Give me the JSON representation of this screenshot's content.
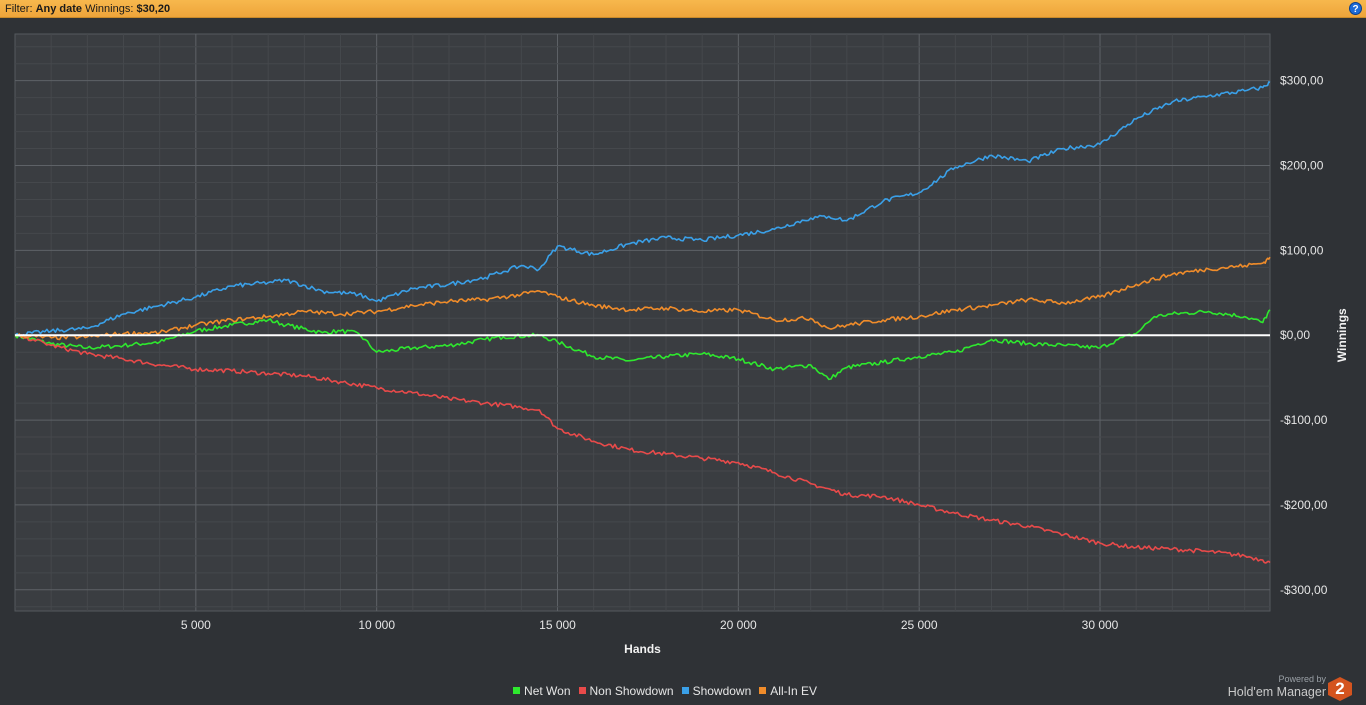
{
  "filter_bar": {
    "filter_label": "Filter:",
    "filter_value": "Any date",
    "winnings_label": "Winnings:",
    "winnings_value": "$30,20",
    "help_glyph": "?"
  },
  "branding": {
    "powered_by": "Powered by",
    "product": "Hold'em Manager",
    "logo_text": "2",
    "logo_color": "#d4541f"
  },
  "colors": {
    "background": "#2f3236",
    "plot_background": "#3a3d41",
    "zero_line": "#ffffff"
  },
  "chart_data": {
    "type": "line",
    "xlabel": "Hands",
    "ylabel": "Winnings",
    "xlim": [
      0,
      34700
    ],
    "ylim": [
      -325,
      355
    ],
    "x_ticks": [
      5000,
      10000,
      15000,
      20000,
      25000,
      30000
    ],
    "x_tick_labels": [
      "5 000",
      "10 000",
      "15 000",
      "20 000",
      "25 000",
      "30 000"
    ],
    "y_ticks": [
      300,
      200,
      100,
      0,
      -100,
      -200,
      -300
    ],
    "y_tick_labels": [
      "$300,00",
      "$200,00",
      "$100,00",
      "$0,00",
      "-$100,00",
      "-$200,00",
      "-$300,00"
    ],
    "legend_position": "bottom-center",
    "grid": true,
    "series": [
      {
        "name": "Net Won",
        "color": "#2ee82e",
        "x": [
          0,
          1000,
          2000,
          3000,
          4000,
          5000,
          6000,
          7000,
          7500,
          8500,
          9000,
          9500,
          10000,
          11000,
          12000,
          13000,
          13500,
          14500,
          15000,
          16000,
          17000,
          18000,
          19000,
          20000,
          21000,
          22000,
          22500,
          23000,
          24000,
          25000,
          26000,
          26500,
          27000,
          28000,
          29000,
          30000,
          30500,
          31000,
          31500,
          32000,
          33000,
          34000,
          34500,
          34700
        ],
        "y": [
          0,
          -10,
          -15,
          -12,
          -8,
          5,
          12,
          18,
          12,
          3,
          5,
          2,
          -20,
          -15,
          -12,
          -5,
          -2,
          0,
          -8,
          -25,
          -30,
          -25,
          -22,
          -28,
          -40,
          -35,
          -52,
          -38,
          -32,
          -25,
          -20,
          -12,
          -5,
          -10,
          -12,
          -15,
          -5,
          2,
          22,
          25,
          28,
          22,
          15,
          30
        ]
      },
      {
        "name": "Non Showdown",
        "color": "#e84a4a",
        "x": [
          0,
          500,
          1000,
          2000,
          3000,
          4000,
          5000,
          6000,
          7000,
          8000,
          9000,
          10000,
          11000,
          12000,
          13000,
          14000,
          14500,
          15000,
          16000,
          17000,
          18000,
          19000,
          20000,
          21000,
          22000,
          23000,
          24000,
          25000,
          26000,
          27000,
          28000,
          29000,
          30000,
          31000,
          32000,
          33000,
          34000,
          34500,
          34700
        ],
        "y": [
          0,
          -5,
          -12,
          -22,
          -28,
          -35,
          -40,
          -42,
          -45,
          -48,
          -55,
          -62,
          -68,
          -75,
          -80,
          -85,
          -88,
          -110,
          -125,
          -135,
          -140,
          -145,
          -150,
          -162,
          -175,
          -188,
          -190,
          -200,
          -210,
          -218,
          -225,
          -235,
          -245,
          -250,
          -252,
          -255,
          -260,
          -265,
          -268
        ]
      },
      {
        "name": "Showdown",
        "color": "#3aa0e8",
        "x": [
          0,
          1000,
          2000,
          3000,
          4000,
          5000,
          6000,
          7000,
          7500,
          8500,
          9500,
          10000,
          11000,
          12000,
          13000,
          13500,
          14000,
          14500,
          15000,
          16000,
          17000,
          18000,
          19000,
          20000,
          21000,
          22000,
          22500,
          23000,
          24000,
          25000,
          26000,
          27000,
          28000,
          29000,
          30000,
          31000,
          32000,
          33000,
          34000,
          34500,
          34700
        ],
        "y": [
          0,
          5,
          8,
          25,
          35,
          45,
          58,
          62,
          65,
          52,
          48,
          40,
          55,
          60,
          68,
          75,
          82,
          78,
          105,
          95,
          108,
          115,
          112,
          118,
          125,
          138,
          140,
          135,
          158,
          168,
          198,
          212,
          205,
          220,
          225,
          255,
          275,
          282,
          288,
          292,
          298
        ]
      },
      {
        "name": "All-In EV",
        "color": "#f08c2a",
        "x": [
          0,
          1000,
          2000,
          3000,
          4000,
          5000,
          6000,
          7000,
          8000,
          9000,
          10000,
          11000,
          12000,
          13000,
          14000,
          14500,
          15000,
          16000,
          17000,
          18000,
          19000,
          20000,
          21000,
          22000,
          22500,
          23000,
          24000,
          25000,
          26000,
          27000,
          28000,
          29000,
          30000,
          31000,
          32000,
          33000,
          34000,
          34500,
          34700
        ],
        "y": [
          0,
          -3,
          -2,
          2,
          3,
          12,
          18,
          22,
          28,
          25,
          28,
          35,
          40,
          42,
          48,
          52,
          45,
          35,
          30,
          32,
          28,
          30,
          18,
          20,
          8,
          12,
          18,
          22,
          30,
          35,
          42,
          38,
          45,
          60,
          72,
          78,
          82,
          85,
          92
        ]
      }
    ]
  }
}
